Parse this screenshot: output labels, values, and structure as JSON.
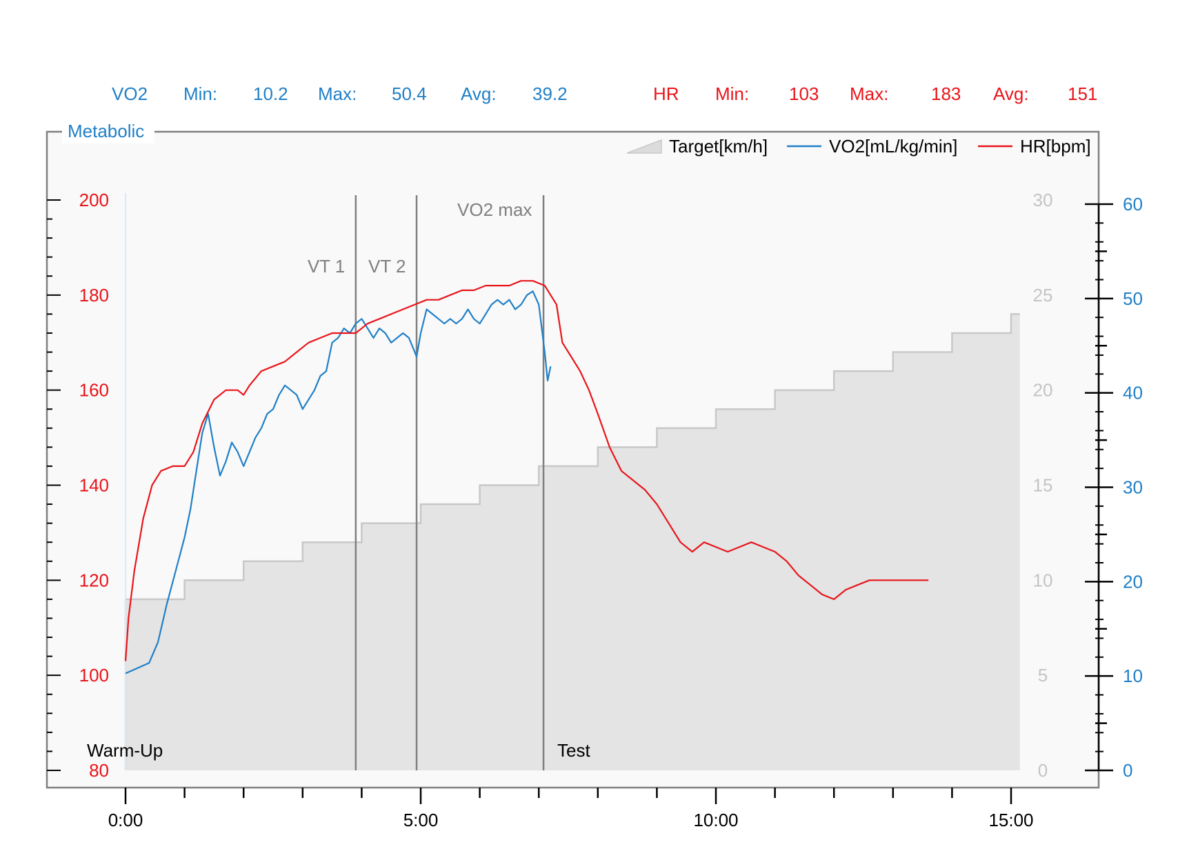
{
  "stats": {
    "vo2": {
      "label": "VO2",
      "min_label": "Min:",
      "min": "10.2",
      "max_label": "Max:",
      "max": "50.4",
      "avg_label": "Avg:",
      "avg": "39.2"
    },
    "hr": {
      "label": "HR",
      "min_label": "Min:",
      "min": "103",
      "max_label": "Max:",
      "max": "183",
      "avg_label": "Avg:",
      "avg": "151"
    }
  },
  "panel_title": "Metabolic",
  "colors": {
    "vo2": "#1f7fc7",
    "hr": "#e8141a",
    "target_fill": "#e4e4e4",
    "target_line": "#c8c8c8",
    "marker": "#7f7f7f",
    "plot_bg": "#f9f9f9"
  },
  "chart_data": {
    "type": "line",
    "x_axis": {
      "range_min": [
        0,
        15.5
      ],
      "ticks_min": [
        0,
        5,
        10,
        15
      ],
      "tick_labels": [
        "0:00",
        "5:00",
        "10:00",
        "15:00"
      ]
    },
    "hr_axis": {
      "side": "left",
      "range": [
        80,
        200
      ],
      "ticks": [
        80,
        100,
        120,
        140,
        160,
        180,
        200
      ]
    },
    "speed_axis": {
      "side": "right-inner",
      "range": [
        0,
        30
      ],
      "ticks": [
        0,
        5,
        10,
        15,
        20,
        25,
        30
      ]
    },
    "vo2_axis": {
      "side": "right",
      "range": [
        0,
        60
      ],
      "ticks": [
        0,
        10,
        20,
        30,
        40,
        50,
        60
      ]
    },
    "legend": {
      "position": "top-right",
      "items": [
        {
          "name": "Target[km/h]",
          "kind": "area"
        },
        {
          "name": "VO2[mL/kg/min]",
          "kind": "line"
        },
        {
          "name": "HR[bpm]",
          "kind": "line"
        }
      ]
    },
    "markers": [
      {
        "label": "VT 1",
        "x_min": 3.9
      },
      {
        "label": "VT 2",
        "x_min": 4.93
      },
      {
        "label": "VO2 max",
        "x_min": 7.08
      }
    ],
    "phases": [
      {
        "label": "Warm-Up",
        "x_min": 0
      },
      {
        "label": "Test",
        "x_min": 7.08
      }
    ],
    "series": [
      {
        "name": "Target[km/h]",
        "axis": "speed",
        "x": [
          0,
          0,
          1,
          1,
          2,
          2,
          3,
          3,
          4,
          4,
          5,
          5,
          6,
          6,
          7,
          7,
          8,
          8,
          9,
          9,
          10,
          10,
          11,
          11,
          12,
          12,
          13,
          13,
          14,
          14,
          15,
          15,
          15.15
        ],
        "values": [
          0,
          9,
          9,
          10,
          10,
          11,
          11,
          12,
          12,
          13,
          13,
          14,
          14,
          15,
          15,
          16,
          16,
          17,
          17,
          18,
          18,
          19,
          19,
          20,
          20,
          21,
          21,
          22,
          22,
          23,
          23,
          24,
          24
        ]
      },
      {
        "name": "VO2[mL/kg/min]",
        "axis": "vo2",
        "x": [
          0,
          0.4,
          0.55,
          0.7,
          0.85,
          1.0,
          1.1,
          1.2,
          1.3,
          1.4,
          1.5,
          1.6,
          1.7,
          1.8,
          1.9,
          2.0,
          2.1,
          2.2,
          2.3,
          2.4,
          2.5,
          2.6,
          2.7,
          2.8,
          2.9,
          3.0,
          3.1,
          3.2,
          3.3,
          3.4,
          3.5,
          3.6,
          3.7,
          3.8,
          3.9,
          4.0,
          4.1,
          4.2,
          4.3,
          4.4,
          4.5,
          4.6,
          4.7,
          4.8,
          4.9,
          4.93,
          5.0,
          5.1,
          5.2,
          5.3,
          5.4,
          5.5,
          5.6,
          5.7,
          5.8,
          5.9,
          6.0,
          6.1,
          6.2,
          6.3,
          6.4,
          6.5,
          6.6,
          6.7,
          6.8,
          6.9,
          7.0,
          7.05,
          7.1,
          7.15,
          7.2
        ],
        "values": [
          10.2,
          11.3,
          13.5,
          17.5,
          21.0,
          24.5,
          27.5,
          31.5,
          35.5,
          37.5,
          34.0,
          31.0,
          32.5,
          34.5,
          33.5,
          32.0,
          33.5,
          35.0,
          36.0,
          37.5,
          38.0,
          39.5,
          40.5,
          40.0,
          39.5,
          38.0,
          39.0,
          40.0,
          41.5,
          42.0,
          45.0,
          45.5,
          46.5,
          46.0,
          47.0,
          47.5,
          46.5,
          45.5,
          46.5,
          46.0,
          45.0,
          45.5,
          46.0,
          45.5,
          44.0,
          43.5,
          46.0,
          48.5,
          48.0,
          47.5,
          47.0,
          47.5,
          47.0,
          47.5,
          48.5,
          47.5,
          47.0,
          48.0,
          49.0,
          49.5,
          49.0,
          49.5,
          48.5,
          49.0,
          50.0,
          50.4,
          49.0,
          46.5,
          44.0,
          41.0,
          42.5
        ]
      },
      {
        "name": "HR[bpm]",
        "axis": "hr",
        "x": [
          0,
          0.05,
          0.15,
          0.3,
          0.45,
          0.6,
          0.8,
          1.0,
          1.15,
          1.3,
          1.5,
          1.7,
          1.9,
          2.0,
          2.1,
          2.3,
          2.5,
          2.7,
          2.9,
          3.1,
          3.3,
          3.5,
          3.7,
          3.9,
          4.1,
          4.3,
          4.5,
          4.7,
          4.9,
          5.1,
          5.3,
          5.5,
          5.7,
          5.9,
          6.1,
          6.3,
          6.5,
          6.7,
          6.9,
          7.1,
          7.3,
          7.4,
          7.5,
          7.6,
          7.7,
          7.85,
          8.0,
          8.2,
          8.4,
          8.6,
          8.8,
          9.0,
          9.2,
          9.4,
          9.6,
          9.8,
          10.0,
          10.2,
          10.4,
          10.6,
          10.8,
          11.0,
          11.2,
          11.4,
          11.6,
          11.8,
          12.0,
          12.2,
          12.4,
          12.6,
          12.8,
          13.0,
          13.2,
          13.4,
          13.6
        ],
        "values": [
          103,
          112,
          122,
          133,
          140,
          143,
          144,
          144,
          147,
          153,
          158,
          160,
          160,
          159,
          161,
          164,
          165,
          166,
          168,
          170,
          171,
          172,
          172,
          172,
          174,
          175,
          176,
          177,
          178,
          179,
          179,
          180,
          181,
          181,
          182,
          182,
          182,
          183,
          183,
          182,
          178,
          170,
          168,
          166,
          164,
          160,
          155,
          148,
          143,
          141,
          139,
          136,
          132,
          128,
          126,
          128,
          127,
          126,
          127,
          128,
          127,
          126,
          124,
          121,
          119,
          117,
          116,
          118,
          119,
          120,
          120,
          120,
          120,
          120,
          120
        ]
      }
    ]
  }
}
